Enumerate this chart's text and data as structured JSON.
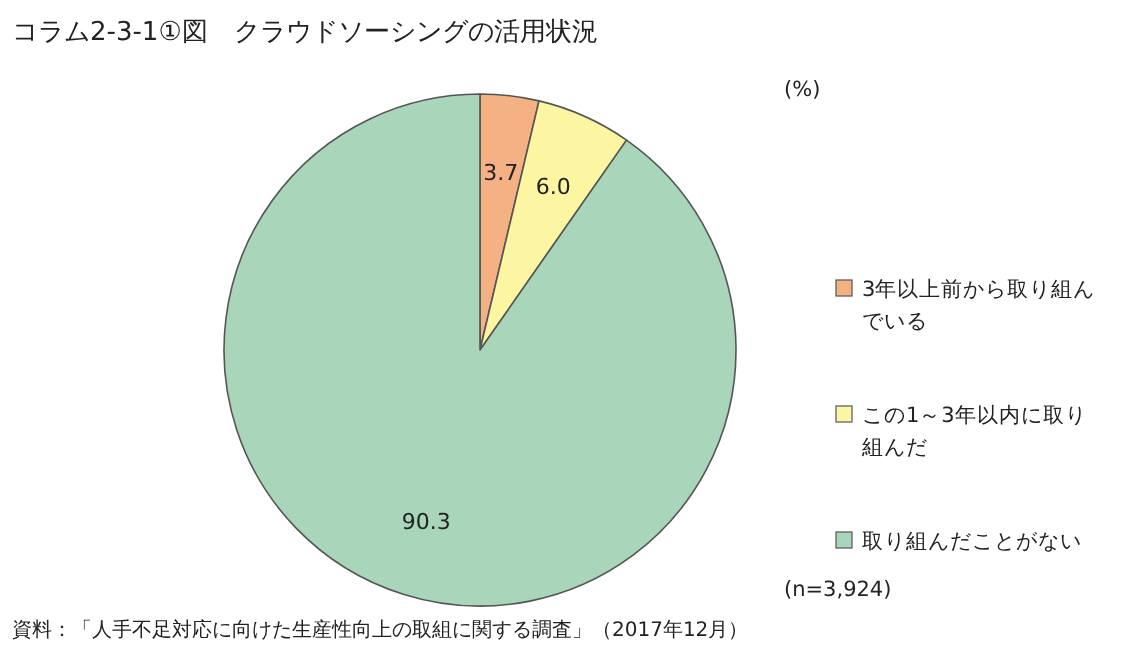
{
  "chart_data": {
    "type": "pie",
    "title": "コラム2-3-1①図　クラウドソーシングの活用状況",
    "categories": [
      "3年以上前から取り組んでいる",
      "この1～3年以内に取り組んだ",
      "取り組んだことがない"
    ],
    "values": [
      3.7,
      6.0,
      90.3
    ],
    "colors": [
      "#f4b183",
      "#fcf6a2",
      "#a9d6ba"
    ],
    "value_labels": [
      "3.7",
      "6.0",
      "90.3"
    ],
    "legend": "right",
    "annotations": [
      "(%)",
      "(n=3,924)",
      "資料：「人手不足対応に向けた生産性向上の取組に関する調査」（2017年12月）"
    ]
  }
}
